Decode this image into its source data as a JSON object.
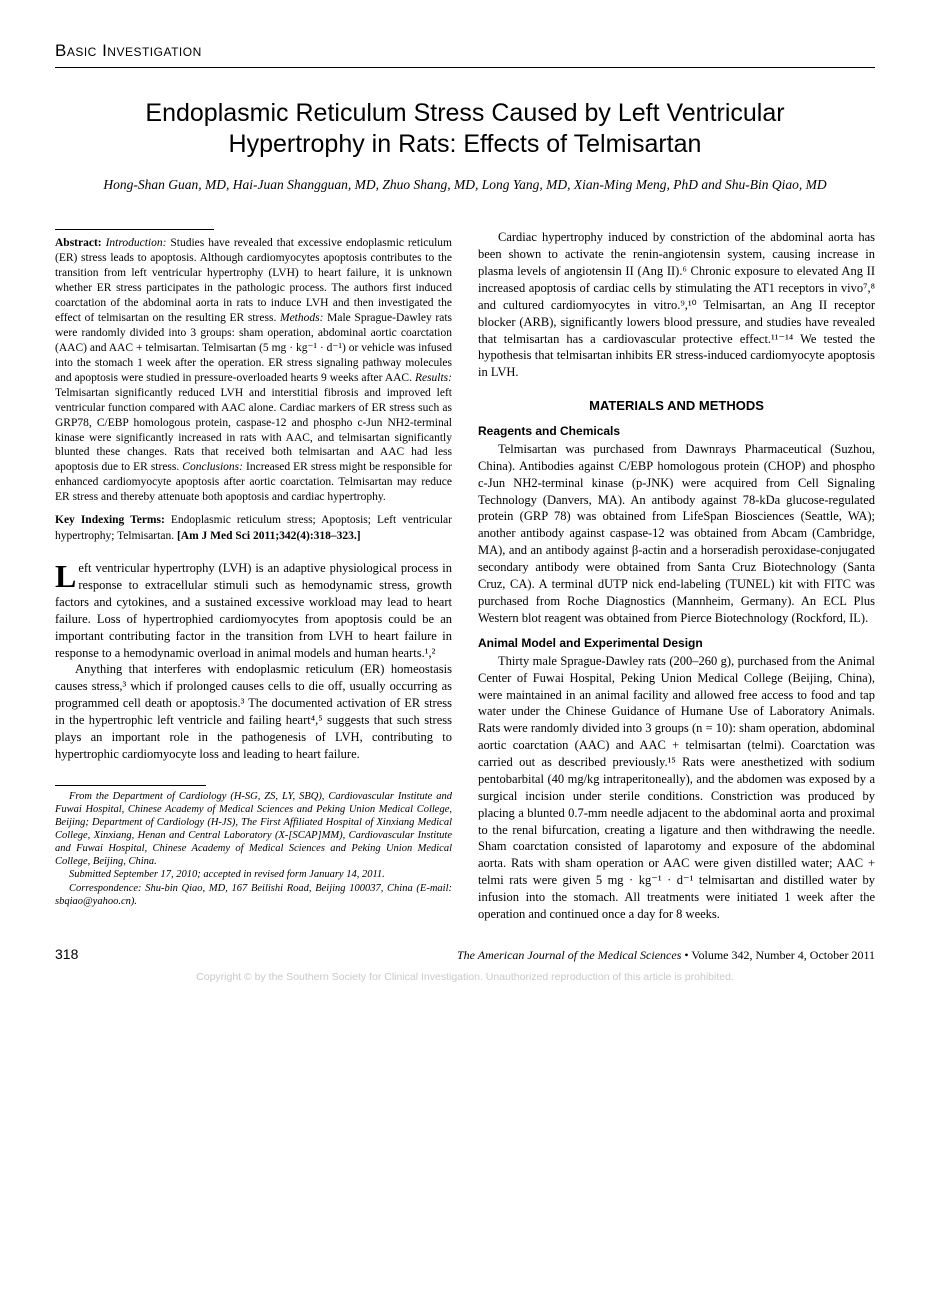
{
  "header": {
    "section": "Basic Investigation"
  },
  "title": "Endoplasmic Reticulum Stress Caused by Left Ventricular Hypertrophy in Rats: Effects of Telmisartan",
  "authors": "Hong-Shan Guan, MD, Hai-Juan Shangguan, MD, Zhuo Shang, MD, Long Yang, MD, Xian-Ming Meng, PhD and Shu-Bin Qiao, MD",
  "abstract": {
    "label": "Abstract:",
    "intro_label": "Introduction:",
    "intro": " Studies have revealed that excessive endoplasmic reticulum (ER) stress leads to apoptosis. Although cardiomyocytes apoptosis contributes to the transition from left ventricular hypertrophy (LVH) to heart failure, it is unknown whether ER stress participates in the pathologic process. The authors first induced coarctation of the abdominal aorta in rats to induce LVH and then investigated the effect of telmisartan on the resulting ER stress. ",
    "methods_label": "Methods:",
    "methods": " Male Sprague-Dawley rats were randomly divided into 3 groups: sham operation, abdominal aortic coarctation (AAC) and AAC + telmisartan. Telmisartan (5 mg · kg⁻¹ · d⁻¹) or vehicle was infused into the stomach 1 week after the operation. ER stress signaling pathway molecules and apoptosis were studied in pressure-overloaded hearts 9 weeks after AAC. ",
    "results_label": "Results:",
    "results": " Telmisartan significantly reduced LVH and interstitial fibrosis and improved left ventricular function compared with AAC alone. Cardiac markers of ER stress such as GRP78, C/EBP homologous protein, caspase-12 and phospho c-Jun NH2-terminal kinase were significantly increased in rats with AAC, and telmisartan significantly blunted these changes. Rats that received both telmisartan and AAC had less apoptosis due to ER stress. ",
    "conclusions_label": "Conclusions:",
    "conclusions": " Increased ER stress might be responsible for enhanced cardiomyocyte apoptosis after aortic coarctation. Telmisartan may reduce ER stress and thereby attenuate both apoptosis and cardiac hypertrophy."
  },
  "key_terms": {
    "label": "Key Indexing Terms:",
    "terms": " Endoplasmic reticulum stress; Apoptosis; Left ventricular hypertrophy; Telmisartan. ",
    "citation": "[Am J Med Sci 2011;342(4):318–323.]"
  },
  "left_body": {
    "p1": "eft ventricular hypertrophy (LVH) is an adaptive physiological process in response to extracellular stimuli such as hemodynamic stress, growth factors and cytokines, and a sustained excessive workload may lead to heart failure. Loss of hypertrophied cardiomyocytes from apoptosis could be an important contributing factor in the transition from LVH to heart failure in response to a hemodynamic overload in animal models and human hearts.¹,²",
    "p2": "Anything that interferes with endoplasmic reticulum (ER) homeostasis causes stress,³ which if prolonged causes cells to die off, usually occurring as programmed cell death or apoptosis.³ The documented activation of ER stress in the hypertrophic left ventricle and failing heart⁴,⁵ suggests that such stress plays an important role in the pathogenesis of LVH, contributing to hypertrophic cardiomyocyte loss and leading to heart failure."
  },
  "right_body": {
    "p1": "Cardiac hypertrophy induced by constriction of the abdominal aorta has been shown to activate the renin-angiotensin system, causing increase in plasma levels of angiotensin II (Ang II).⁶ Chronic exposure to elevated Ang II increased apoptosis of cardiac cells by stimulating the AT1 receptors in vivo⁷,⁸ and cultured cardiomyocytes in vitro.⁹,¹⁰ Telmisartan, an Ang II receptor blocker (ARB), significantly lowers blood pressure, and studies have revealed that telmisartan has a cardiovascular protective effect.¹¹⁻¹⁴ We tested the hypothesis that telmisartan inhibits ER stress-induced cardiomyocyte apoptosis in LVH.",
    "h_methods": "MATERIALS AND METHODS",
    "h_reagents": "Reagents and Chemicals",
    "p_reagents": "Telmisartan was purchased from Dawnrays Pharmaceutical (Suzhou, China). Antibodies against C/EBP homologous protein (CHOP) and phospho c-Jun NH2-terminal kinase (p-JNK) were acquired from Cell Signaling Technology (Danvers, MA). An antibody against 78-kDa glucose-regulated protein (GRP 78) was obtained from LifeSpan Biosciences (Seattle, WA); another antibody against caspase-12 was obtained from Abcam (Cambridge, MA), and an antibody against β-actin and a horseradish peroxidase-conjugated secondary antibody were obtained from Santa Cruz Biotechnology (Santa Cruz, CA). A terminal dUTP nick end-labeling (TUNEL) kit with FITC was purchased from Roche Diagnostics (Mannheim, Germany). An ECL Plus Western blot reagent was obtained from Pierce Biotechnology (Rockford, IL).",
    "h_animal": "Animal Model and Experimental Design",
    "p_animal": "Thirty male Sprague-Dawley rats (200–260 g), purchased from the Animal Center of Fuwai Hospital, Peking Union Medical College (Beijing, China), were maintained in an animal facility and allowed free access to food and tap water under the Chinese Guidance of Humane Use of Laboratory Animals. Rats were randomly divided into 3 groups (n = 10): sham operation, abdominal aortic coarctation (AAC) and AAC + telmisartan (telmi). Coarctation was carried out as described previously.¹⁵ Rats were anesthetized with sodium pentobarbital (40 mg/kg intraperitoneally), and the abdomen was exposed by a surgical incision under sterile conditions. Constriction was produced by placing a blunted 0.7-mm needle adjacent to the abdominal aorta and proximal to the renal bifurcation, creating a ligature and then withdrawing the needle. Sham coarctation consisted of laparotomy and exposure of the abdominal aorta. Rats with sham operation or AAC were given distilled water; AAC + telmi rats were given 5 mg · kg⁻¹ · d⁻¹ telmisartan and distilled water by infusion into the stomach. All treatments were initiated 1 week after the operation and continued once a day for 8 weeks."
  },
  "footnotes": {
    "affil": "From the Department of Cardiology (H-SG, ZS, LY, SBQ), Cardiovascular Institute and Fuwai Hospital, Chinese Academy of Medical Sciences and Peking Union Medical College, Beijing; Department of Cardiology (H-JS), The First Affiliated Hospital of Xinxiang Medical College, Xinxiang, Henan and Central Laboratory (X-[SCAP]MM), Cardiovascular Institute and Fuwai Hospital, Chinese Academy of Medical Sciences and Peking Union Medical College, Beijing, China.",
    "submitted": "Submitted September 17, 2010; accepted in revised form January 14, 2011.",
    "corr": "Correspondence: Shu-bin Qiao, MD, 167 Beilishi Road, Beijing 100037, China (E-mail: sbqiao@yahoo.cn)."
  },
  "footer": {
    "page_num": "318",
    "journal": "The American Journal of the Medical Sciences",
    "vol": " • Volume 342, Number 4, October 2011"
  },
  "copyright": "Copyright © by the Southern Society for Clinical Investigation. Unauthorized reproduction of this article is prohibited."
}
